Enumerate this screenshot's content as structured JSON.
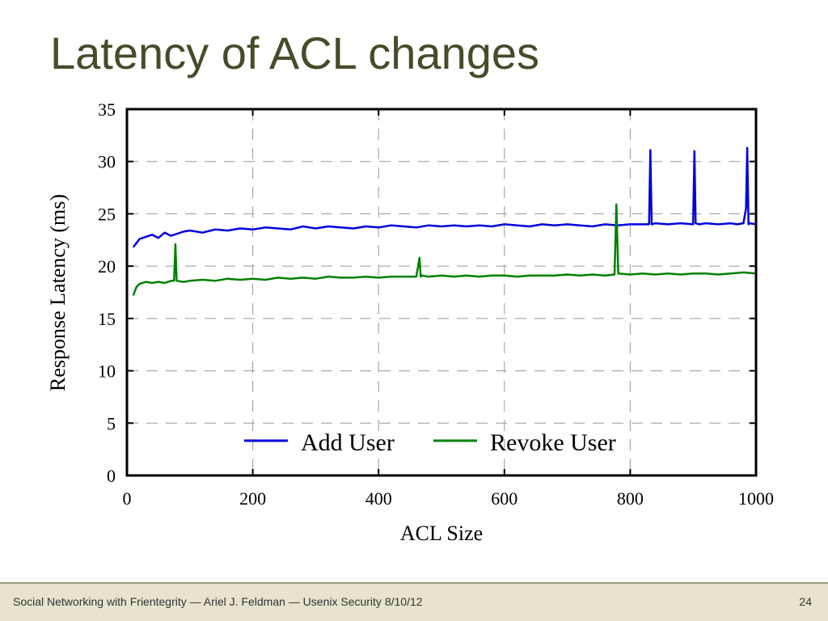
{
  "slide": {
    "title": "Latency of ACL changes",
    "footer_text": "Social Networking with Frientegrity — Ariel J. Feldman — Usenix Security 8/10/12",
    "page_number": "24"
  },
  "colors": {
    "title": "#4a4a2a",
    "footer_bg": "#e7e3cf",
    "add_user": "#0000dd",
    "revoke_user": "#008000"
  },
  "chart_data": {
    "type": "line",
    "title": "",
    "xlabel": "ACL Size",
    "ylabel": "Response Latency (ms)",
    "xlim": [
      0,
      1000
    ],
    "ylim": [
      0,
      35
    ],
    "xticks": [
      0,
      200,
      400,
      600,
      800,
      1000
    ],
    "yticks": [
      0,
      5,
      10,
      15,
      20,
      25,
      30,
      35
    ],
    "grid": true,
    "legend_position": "bottom-right",
    "series": [
      {
        "name": "Add User",
        "color": "#0000dd",
        "x": [
          10,
          20,
          30,
          40,
          50,
          60,
          70,
          80,
          90,
          100,
          120,
          140,
          160,
          180,
          200,
          220,
          240,
          260,
          280,
          300,
          320,
          340,
          360,
          380,
          400,
          420,
          440,
          460,
          480,
          500,
          520,
          540,
          560,
          580,
          600,
          620,
          640,
          660,
          680,
          700,
          720,
          740,
          760,
          780,
          800,
          820,
          830,
          832,
          834,
          840,
          860,
          880,
          900,
          902,
          904,
          910,
          920,
          940,
          960,
          970,
          980,
          984,
          986,
          988,
          990,
          1000
        ],
        "y": [
          21.8,
          22.6,
          22.8,
          23.0,
          22.7,
          23.2,
          22.9,
          23.1,
          23.3,
          23.4,
          23.2,
          23.5,
          23.4,
          23.6,
          23.5,
          23.7,
          23.6,
          23.5,
          23.8,
          23.6,
          23.8,
          23.7,
          23.6,
          23.8,
          23.7,
          23.9,
          23.8,
          23.7,
          23.9,
          23.8,
          23.9,
          23.8,
          23.9,
          23.8,
          24.0,
          23.9,
          23.8,
          24.0,
          23.9,
          24.0,
          23.9,
          23.8,
          24.0,
          23.9,
          24.0,
          24.0,
          24.0,
          31.1,
          24.0,
          24.1,
          24.0,
          24.1,
          24.0,
          31.0,
          24.1,
          24.0,
          24.1,
          24.0,
          24.1,
          24.0,
          24.1,
          25.5,
          31.3,
          24.0,
          24.1,
          24.0
        ]
      },
      {
        "name": "Revoke User",
        "color": "#008000",
        "x": [
          10,
          15,
          20,
          30,
          40,
          50,
          60,
          70,
          75,
          77,
          79,
          90,
          100,
          120,
          140,
          160,
          180,
          200,
          220,
          240,
          260,
          280,
          300,
          320,
          340,
          360,
          380,
          400,
          420,
          440,
          460,
          465,
          467,
          469,
          480,
          500,
          520,
          540,
          560,
          580,
          600,
          620,
          640,
          660,
          680,
          700,
          720,
          740,
          760,
          775,
          778,
          781,
          800,
          820,
          840,
          860,
          880,
          900,
          920,
          940,
          960,
          980,
          1000
        ],
        "y": [
          17.2,
          18.0,
          18.3,
          18.5,
          18.4,
          18.5,
          18.4,
          18.6,
          18.6,
          22.1,
          18.6,
          18.5,
          18.6,
          18.7,
          18.6,
          18.8,
          18.7,
          18.8,
          18.7,
          18.9,
          18.8,
          18.9,
          18.8,
          19.0,
          18.9,
          18.9,
          19.0,
          18.9,
          19.0,
          19.0,
          19.0,
          20.8,
          19.0,
          19.1,
          19.0,
          19.1,
          19.0,
          19.1,
          19.0,
          19.1,
          19.1,
          19.0,
          19.1,
          19.1,
          19.1,
          19.2,
          19.1,
          19.2,
          19.1,
          19.2,
          25.9,
          19.3,
          19.2,
          19.3,
          19.2,
          19.3,
          19.2,
          19.3,
          19.3,
          19.2,
          19.3,
          19.4,
          19.3
        ]
      }
    ]
  }
}
